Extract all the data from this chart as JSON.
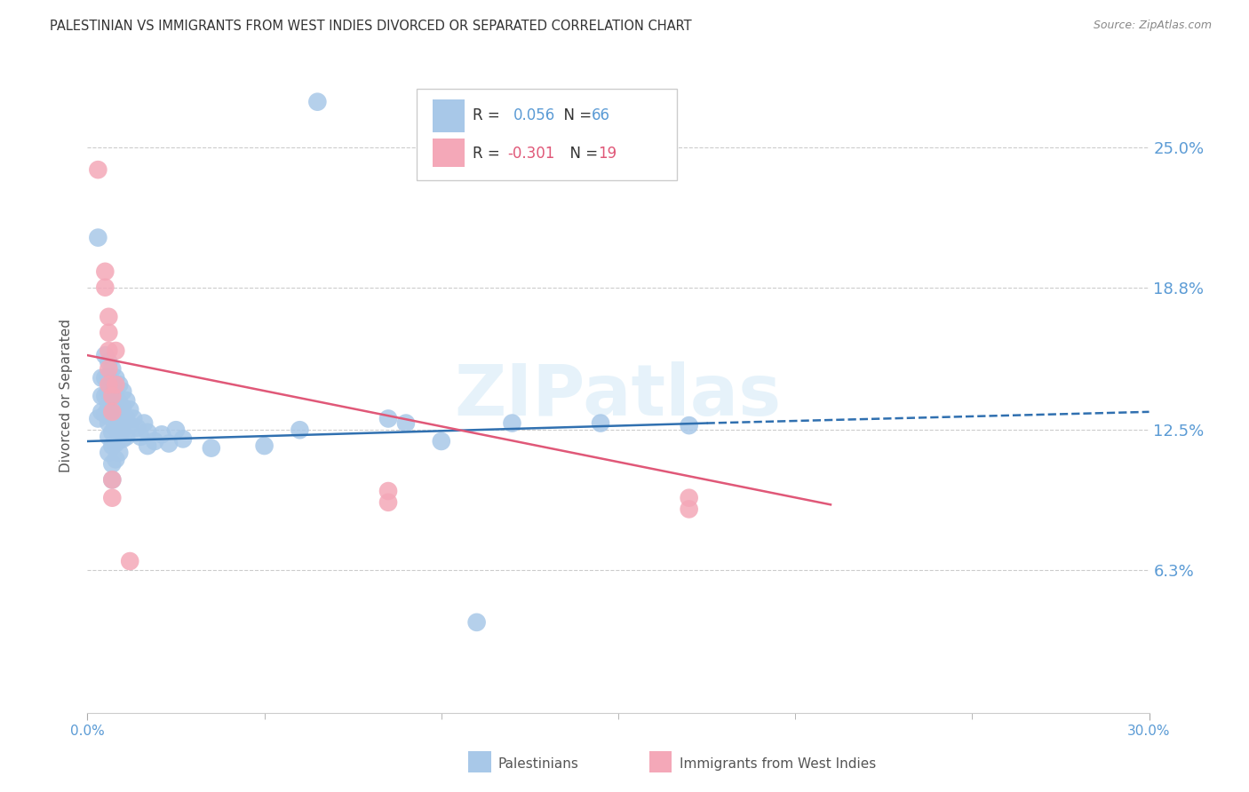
{
  "title": "PALESTINIAN VS IMMIGRANTS FROM WEST INDIES DIVORCED OR SEPARATED CORRELATION CHART",
  "source": "Source: ZipAtlas.com",
  "ylabel": "Divorced or Separated",
  "ytick_labels": [
    "25.0%",
    "18.8%",
    "12.5%",
    "6.3%"
  ],
  "ytick_values": [
    0.25,
    0.188,
    0.125,
    0.063
  ],
  "xlim": [
    0.0,
    0.3
  ],
  "ylim": [
    0.0,
    0.28
  ],
  "watermark": "ZIPatlas",
  "blue_color": "#a8c8e8",
  "pink_color": "#f4a8b8",
  "blue_line_color": "#3070b0",
  "pink_line_color": "#e05878",
  "blue_scatter": [
    [
      0.003,
      0.21
    ],
    [
      0.003,
      0.13
    ],
    [
      0.004,
      0.148
    ],
    [
      0.004,
      0.14
    ],
    [
      0.004,
      0.133
    ],
    [
      0.005,
      0.158
    ],
    [
      0.005,
      0.148
    ],
    [
      0.005,
      0.14
    ],
    [
      0.005,
      0.132
    ],
    [
      0.006,
      0.155
    ],
    [
      0.006,
      0.148
    ],
    [
      0.006,
      0.142
    ],
    [
      0.006,
      0.135
    ],
    [
      0.006,
      0.128
    ],
    [
      0.006,
      0.122
    ],
    [
      0.006,
      0.115
    ],
    [
      0.007,
      0.152
    ],
    [
      0.007,
      0.145
    ],
    [
      0.007,
      0.138
    ],
    [
      0.007,
      0.13
    ],
    [
      0.007,
      0.124
    ],
    [
      0.007,
      0.118
    ],
    [
      0.007,
      0.11
    ],
    [
      0.007,
      0.103
    ],
    [
      0.008,
      0.148
    ],
    [
      0.008,
      0.14
    ],
    [
      0.008,
      0.133
    ],
    [
      0.008,
      0.126
    ],
    [
      0.008,
      0.119
    ],
    [
      0.008,
      0.112
    ],
    [
      0.009,
      0.145
    ],
    [
      0.009,
      0.137
    ],
    [
      0.009,
      0.129
    ],
    [
      0.009,
      0.122
    ],
    [
      0.009,
      0.115
    ],
    [
      0.01,
      0.142
    ],
    [
      0.01,
      0.135
    ],
    [
      0.01,
      0.128
    ],
    [
      0.01,
      0.121
    ],
    [
      0.011,
      0.138
    ],
    [
      0.011,
      0.13
    ],
    [
      0.011,
      0.122
    ],
    [
      0.012,
      0.134
    ],
    [
      0.012,
      0.127
    ],
    [
      0.013,
      0.13
    ],
    [
      0.014,
      0.126
    ],
    [
      0.015,
      0.122
    ],
    [
      0.016,
      0.128
    ],
    [
      0.017,
      0.124
    ],
    [
      0.017,
      0.118
    ],
    [
      0.019,
      0.12
    ],
    [
      0.021,
      0.123
    ],
    [
      0.023,
      0.119
    ],
    [
      0.025,
      0.125
    ],
    [
      0.027,
      0.121
    ],
    [
      0.035,
      0.117
    ],
    [
      0.05,
      0.118
    ],
    [
      0.06,
      0.125
    ],
    [
      0.065,
      0.27
    ],
    [
      0.085,
      0.13
    ],
    [
      0.09,
      0.128
    ],
    [
      0.1,
      0.12
    ],
    [
      0.11,
      0.04
    ],
    [
      0.12,
      0.128
    ],
    [
      0.145,
      0.128
    ],
    [
      0.17,
      0.127
    ]
  ],
  "pink_scatter": [
    [
      0.003,
      0.24
    ],
    [
      0.005,
      0.195
    ],
    [
      0.005,
      0.188
    ],
    [
      0.006,
      0.175
    ],
    [
      0.006,
      0.168
    ],
    [
      0.006,
      0.16
    ],
    [
      0.006,
      0.152
    ],
    [
      0.006,
      0.145
    ],
    [
      0.007,
      0.14
    ],
    [
      0.007,
      0.133
    ],
    [
      0.007,
      0.103
    ],
    [
      0.007,
      0.095
    ],
    [
      0.008,
      0.16
    ],
    [
      0.008,
      0.145
    ],
    [
      0.085,
      0.098
    ],
    [
      0.085,
      0.093
    ],
    [
      0.17,
      0.095
    ],
    [
      0.17,
      0.09
    ],
    [
      0.012,
      0.067
    ]
  ],
  "blue_trendline_solid": [
    [
      0.0,
      0.12
    ],
    [
      0.175,
      0.128
    ]
  ],
  "blue_trendline_dashed": [
    [
      0.175,
      0.128
    ],
    [
      0.3,
      0.133
    ]
  ],
  "pink_trendline": [
    [
      0.0,
      0.158
    ],
    [
      0.21,
      0.092
    ]
  ],
  "grid_color": "#cccccc",
  "title_color": "#333333",
  "title_fontsize": 10.5,
  "tick_label_color": "#5b9bd5",
  "source_color": "#888888",
  "ylabel_color": "#555555",
  "legend_text_color": "#333333",
  "legend_number_color": "#5b9bd5",
  "bottom_label_color": "#555555"
}
